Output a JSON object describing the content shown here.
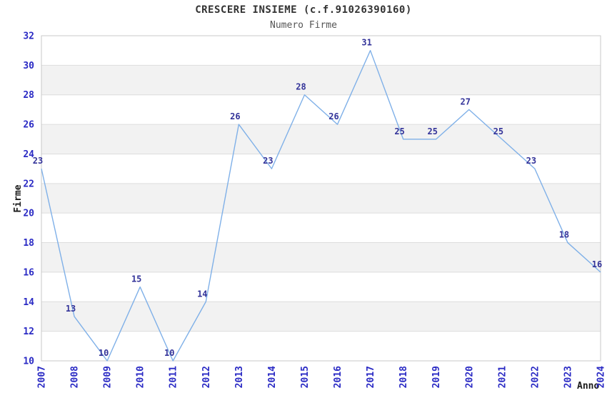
{
  "header": {
    "title": "CRESCERE INSIEME (c.f.91026390160)",
    "subtitle": "Numero Firme"
  },
  "chart_data": {
    "type": "line",
    "title": "CRESCERE INSIEME (c.f.91026390160)",
    "subtitle": "Numero Firme",
    "xlabel": "Anno",
    "ylabel": "Firme",
    "x": [
      2007,
      2008,
      2009,
      2010,
      2011,
      2012,
      2013,
      2014,
      2015,
      2016,
      2017,
      2018,
      2019,
      2020,
      2021,
      2022,
      2023,
      2024
    ],
    "values": [
      23,
      13,
      10,
      15,
      10,
      14,
      26,
      23,
      28,
      26,
      31,
      25,
      25,
      27,
      25,
      23,
      18,
      16
    ],
    "ylim": [
      10,
      32
    ],
    "ytick_step": 2,
    "grid": "horizontal-only",
    "legend": "none",
    "data_labels": true,
    "colors": {
      "line": "#7fb0e8",
      "tick_label": "#2a2ac4",
      "data_label": "#333399",
      "band_gray": "#f2f2f2",
      "band_white": "#ffffff",
      "gridline": "#dddddd",
      "plot_border": "#c8c8c8",
      "title": "#333333",
      "subtitle": "#555555",
      "axis_title": "#1a1a1a"
    }
  }
}
